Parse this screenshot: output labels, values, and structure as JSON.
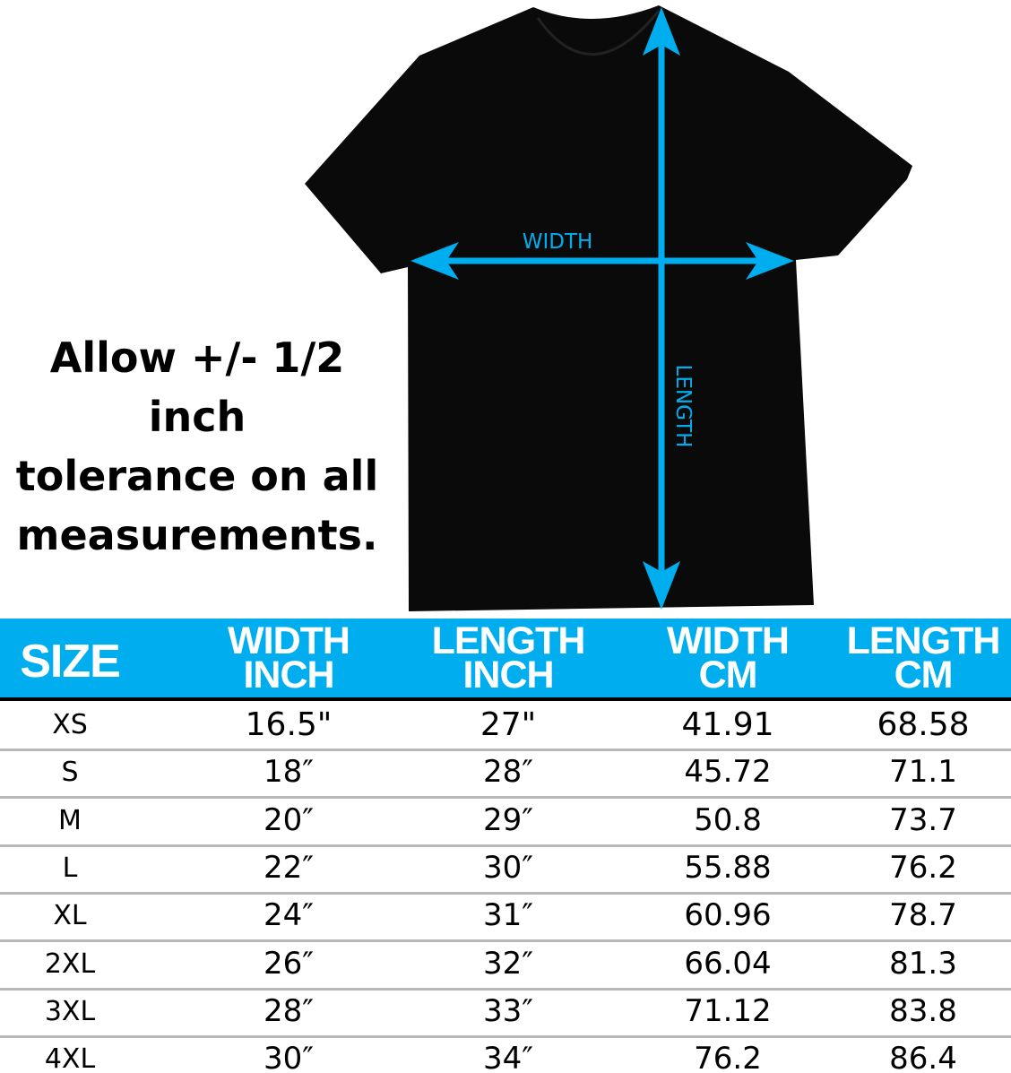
{
  "diagram": {
    "width_label": "WIDTH",
    "length_label": "LENGTH",
    "accent_color": "#00aeef",
    "shirt_color": "#0a0a0a"
  },
  "note": {
    "line1": "Allow +/- 1/2 inch",
    "line2": "tolerance on all",
    "line3": "measurements."
  },
  "table": {
    "headers": [
      {
        "line1": "SIZE",
        "line2": ""
      },
      {
        "line1": "WIDTH",
        "line2": "INCH"
      },
      {
        "line1": "LENGTH",
        "line2": "INCH"
      },
      {
        "line1": "WIDTH",
        "line2": "CM"
      },
      {
        "line1": "LENGTH",
        "line2": "CM"
      }
    ],
    "rows": [
      [
        "XS",
        "16.5\"",
        "27\"",
        "41.91",
        "68.58"
      ],
      [
        "S",
        "18″",
        "28″",
        "45.72",
        "71.1"
      ],
      [
        "M",
        "20″",
        "29″",
        "50.8",
        "73.7"
      ],
      [
        "L",
        "22″",
        "30″",
        "55.88",
        "76.2"
      ],
      [
        "XL",
        "24″",
        "31″",
        "60.96",
        "78.7"
      ],
      [
        "2XL",
        "26″",
        "32″",
        "66.04",
        "81.3"
      ],
      [
        "3XL",
        "28″",
        "33″",
        "71.12",
        "83.8"
      ],
      [
        "4XL",
        "30″",
        "34″",
        "76.2",
        "86.4"
      ]
    ]
  }
}
